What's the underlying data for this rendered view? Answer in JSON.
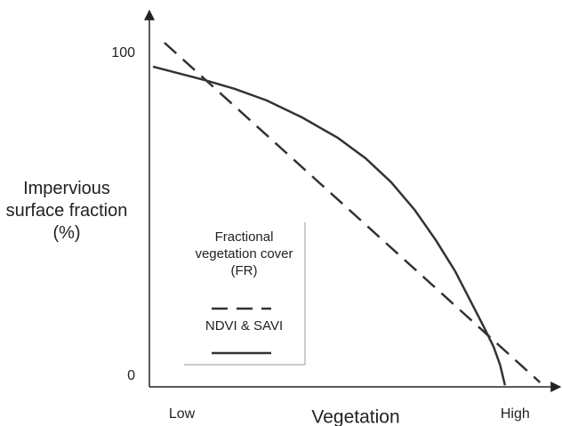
{
  "chart_data": {
    "type": "line",
    "y_label": "Impervious surface fraction (%)",
    "x_label": "Vegetation",
    "xlim": [
      0,
      100
    ],
    "xticks": [
      {
        "value": 8,
        "label": "Low"
      },
      {
        "value": 90,
        "label": "High"
      }
    ],
    "ylim": [
      -3.3,
      112.4
    ],
    "yticks": [
      0,
      100
    ],
    "series": [
      {
        "name": "Fractional vegetation cover (FR)",
        "color": "#333333",
        "dash": true,
        "x": [
          3.7,
          96.1
        ],
        "values": [
          103.3,
          -1.9
        ]
      },
      {
        "name": "NDVI & SAVI",
        "color": "#333333",
        "dash": false,
        "x": [
          0.9,
          13.6,
          21.0,
          28.9,
          37.5,
          46.4,
          53.2,
          59.5,
          65.3,
          70.5,
          75.2,
          79.2,
          82.2,
          84.7,
          86.3,
          87.5
        ],
        "values": [
          95.9,
          91.7,
          89.0,
          85.4,
          80.2,
          73.8,
          67.5,
          60.1,
          51.5,
          42.1,
          32.6,
          22.9,
          15.5,
          9.1,
          3.5,
          -2.8
        ]
      }
    ]
  }
}
